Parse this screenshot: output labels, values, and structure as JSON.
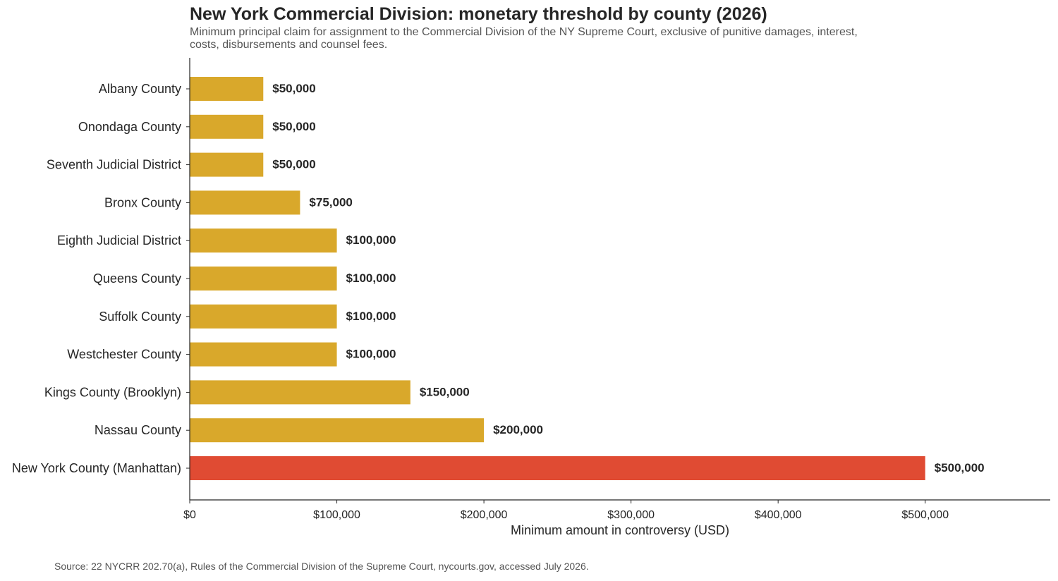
{
  "chart_data": {
    "type": "bar",
    "orientation": "horizontal",
    "title": "New York Commercial Division: monetary threshold by county (2026)",
    "subtitle": "Minimum principal claim for assignment to the Commercial Division of the NY Supreme Court, exclusive of punitive damages, interest, costs, disbursements and counsel fees.",
    "xlabel": "Minimum amount in controversy (USD)",
    "ylabel": "",
    "xlim": [
      0,
      585000
    ],
    "xticks": [
      0,
      100000,
      200000,
      300000,
      400000,
      500000
    ],
    "xtick_labels": [
      "$0",
      "$100,000",
      "$200,000",
      "$300,000",
      "$400,000",
      "$500,000"
    ],
    "categories": [
      "Albany County",
      "Onondaga County",
      "Seventh Judicial District",
      "Bronx County",
      "Eighth Judicial District",
      "Queens County",
      "Suffolk County",
      "Westchester County",
      "Kings County (Brooklyn)",
      "Nassau County",
      "New York County (Manhattan)"
    ],
    "values": [
      50000,
      50000,
      50000,
      75000,
      100000,
      100000,
      100000,
      100000,
      150000,
      200000,
      500000
    ],
    "value_labels": [
      "$50,000",
      "$50,000",
      "$50,000",
      "$75,000",
      "$100,000",
      "$100,000",
      "$100,000",
      "$100,000",
      "$150,000",
      "$200,000",
      "$500,000"
    ],
    "colors": {
      "default": "#D9A82B",
      "highlight": "#E04B33",
      "highlight_category": "New York County (Manhattan)"
    },
    "grid": false,
    "legend": "none",
    "source": "Source: 22 NYCRR 202.70(a), Rules of the Commercial Division of the Supreme Court, nycourts.gov, accessed July 2026."
  }
}
